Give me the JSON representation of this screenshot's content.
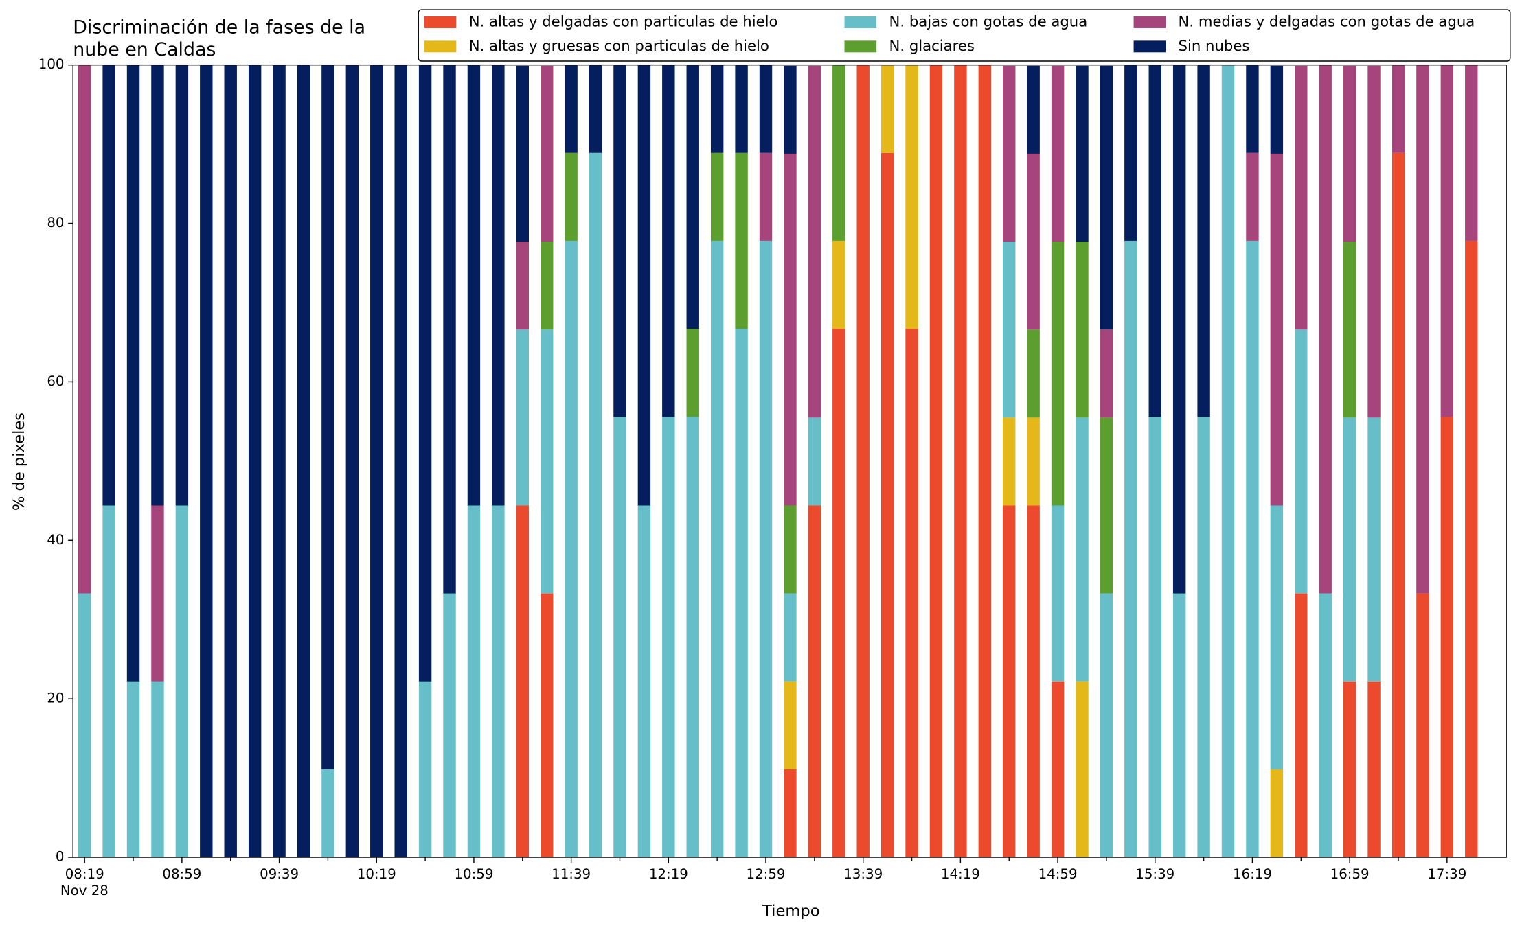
{
  "chart_data": {
    "type": "stacked_bar",
    "title": [
      "Discriminación de la fases de la",
      "nube en Caldas"
    ],
    "x_label": "Tiempo",
    "y_label": "% de pixeles",
    "date_label": "Nov 28",
    "categories": [
      "08:19",
      null,
      null,
      null,
      "08:59",
      null,
      null,
      null,
      "09:39",
      null,
      null,
      null,
      "10:19",
      null,
      null,
      null,
      "10:59",
      null,
      null,
      null,
      "11:39",
      null,
      null,
      null,
      "12:19",
      null,
      null,
      null,
      "12:59",
      null,
      null,
      null,
      "13:39",
      null,
      null,
      null,
      "14:19",
      null,
      null,
      null,
      "14:59",
      null,
      null,
      null,
      "15:39",
      null,
      null,
      null,
      "16:19",
      null,
      null,
      null,
      "16:59",
      null,
      null,
      null,
      "17:39",
      null
    ],
    "ylim": [
      0,
      100
    ],
    "yticks": [
      0,
      20,
      40,
      60,
      80,
      100
    ],
    "grid": false,
    "legend": "upper right",
    "series": [
      {
        "name": "N. altas y delgadas con particulas de hielo",
        "color": "#ec4a2c",
        "values": [
          0,
          0,
          0,
          0,
          0,
          0,
          0,
          0,
          0,
          0,
          0,
          0,
          0,
          0,
          0,
          0,
          0,
          0,
          44.4,
          33.3,
          0,
          0,
          0,
          0,
          0,
          0,
          0,
          0,
          0,
          11.1,
          44.4,
          66.7,
          100,
          88.9,
          66.7,
          100,
          100,
          100,
          44.4,
          44.4,
          22.2,
          0,
          0,
          0,
          0,
          0,
          0,
          0,
          0,
          0,
          33.3,
          0,
          22.2,
          22.2,
          88.9,
          33.3,
          55.6,
          77.8
        ]
      },
      {
        "name": "N. altas y gruesas con particulas de hielo",
        "color": "#e5b81a",
        "values": [
          0,
          0,
          0,
          0,
          0,
          0,
          0,
          0,
          0,
          0,
          0,
          0,
          0,
          0,
          0,
          0,
          0,
          0,
          0,
          0,
          0,
          0,
          0,
          0,
          0,
          0,
          0,
          0,
          0,
          11.1,
          0,
          11.1,
          0,
          11.1,
          33.3,
          0,
          0,
          0,
          11.1,
          11.1,
          0,
          22.2,
          0,
          0,
          0,
          0,
          0,
          0,
          0,
          11.1,
          0,
          0,
          0,
          0,
          0,
          0,
          0,
          0
        ]
      },
      {
        "name": "N. bajas con gotas de agua",
        "color": "#66bec9",
        "values": [
          33.3,
          44.4,
          22.2,
          22.2,
          44.4,
          0,
          0,
          0,
          0,
          0,
          11.1,
          0,
          0,
          0,
          22.2,
          33.3,
          44.4,
          44.4,
          22.2,
          33.3,
          77.8,
          88.9,
          55.6,
          44.4,
          55.6,
          55.6,
          77.8,
          66.7,
          77.8,
          11.1,
          11.1,
          0,
          0,
          0,
          0,
          0,
          0,
          0,
          22.2,
          0,
          22.2,
          33.3,
          33.3,
          77.8,
          55.6,
          33.3,
          55.6,
          100,
          77.8,
          33.3,
          33.3,
          33.3,
          33.3,
          33.3,
          0,
          0,
          0,
          0
        ]
      },
      {
        "name": "N. glaciares",
        "color": "#5c9f2e",
        "values": [
          0,
          0,
          0,
          0,
          0,
          0,
          0,
          0,
          0,
          0,
          0,
          0,
          0,
          0,
          0,
          0,
          0,
          0,
          0,
          11.1,
          11.1,
          0,
          0,
          0,
          0,
          11.1,
          11.1,
          22.2,
          0,
          11.1,
          0,
          22.2,
          0,
          0,
          0,
          0,
          0,
          0,
          0,
          11.1,
          33.3,
          22.2,
          22.2,
          0,
          0,
          0,
          0,
          0,
          0,
          0,
          0,
          0,
          22.2,
          0,
          0,
          0,
          0,
          0
        ]
      },
      {
        "name": "N. medias y delgadas con gotas de agua",
        "color": "#a6457c",
        "values": [
          66.7,
          0,
          0,
          22.2,
          0,
          0,
          0,
          0,
          0,
          0,
          0,
          0,
          0,
          0,
          0,
          0,
          0,
          0,
          11.1,
          22.2,
          0,
          0,
          0,
          0,
          0,
          0,
          0,
          0,
          11.1,
          44.4,
          44.4,
          0,
          0,
          0,
          0,
          0,
          0,
          0,
          22.2,
          22.2,
          22.2,
          0,
          11.1,
          0,
          0,
          0,
          0,
          0,
          11.1,
          44.4,
          33.3,
          66.7,
          22.2,
          44.4,
          11.1,
          66.7,
          44.4,
          22.2
        ]
      },
      {
        "name": "Sin nubes",
        "color": "#051f5e",
        "values": [
          0,
          55.6,
          77.8,
          55.6,
          55.6,
          100,
          100,
          100,
          100,
          100,
          88.9,
          100,
          100,
          100,
          77.8,
          66.7,
          55.6,
          55.6,
          22.2,
          0,
          11.1,
          11.1,
          44.4,
          55.6,
          44.4,
          33.3,
          11.1,
          11.1,
          11.1,
          11.1,
          0,
          0,
          0,
          0,
          0,
          0,
          0,
          0,
          0,
          11.1,
          0,
          22.2,
          33.3,
          22.2,
          44.4,
          66.7,
          44.4,
          0,
          11.1,
          11.1,
          0,
          0,
          0,
          0,
          0,
          0,
          0,
          0
        ]
      }
    ]
  }
}
